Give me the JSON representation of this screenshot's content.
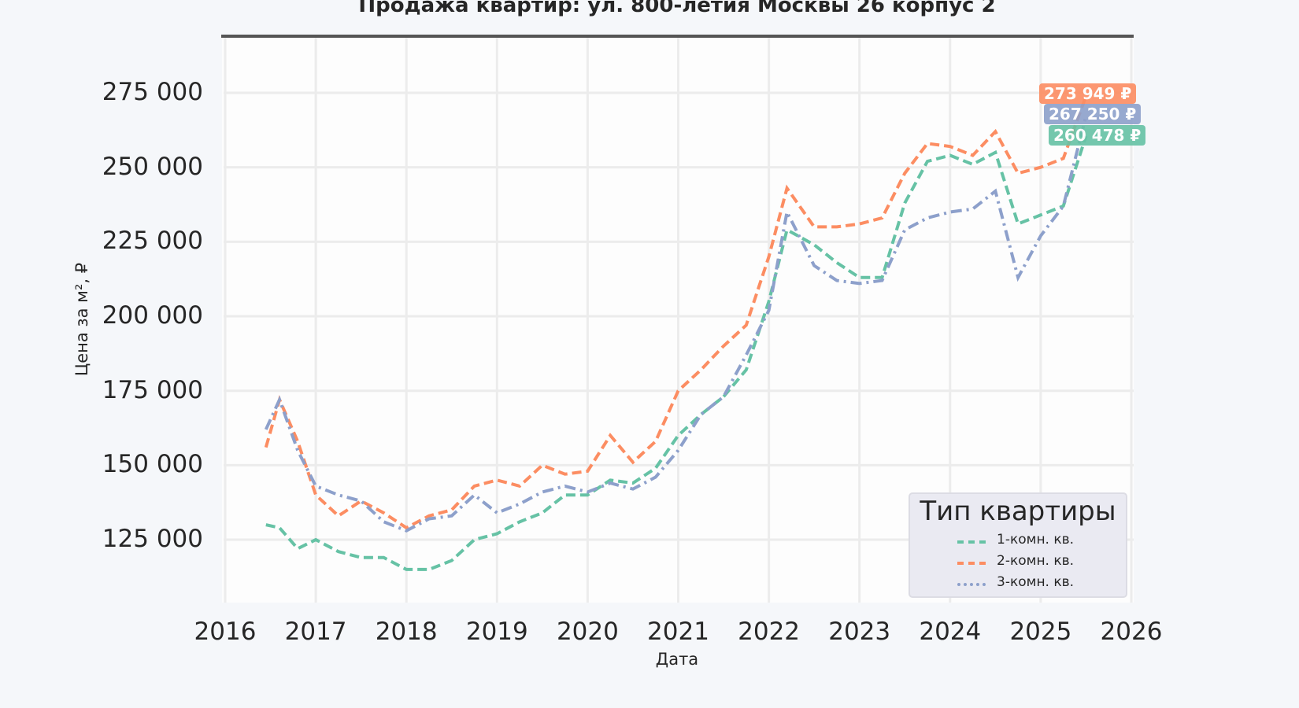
{
  "chart": {
    "title": "Продажа квартир: ул. 800-летия Москвы 26 корпус 2",
    "ylabel": "Цена за м², ₽",
    "xlabel": "Дата",
    "yticks": [
      "275 000",
      "250 000",
      "225 000",
      "200 000",
      "175 000",
      "150 000",
      "125 000"
    ],
    "xticks": [
      "2016",
      "2017",
      "2018",
      "2019",
      "2020",
      "2021",
      "2022",
      "2023",
      "2024",
      "2025",
      "2026"
    ],
    "legend": {
      "title": "Тип квартиры",
      "items": [
        {
          "label": "1-комн. кв.",
          "color": "#66c2a5"
        },
        {
          "label": "2-комн. кв.",
          "color": "#fc8d62"
        },
        {
          "label": "3-комн. кв.",
          "color": "#8da0cb"
        }
      ]
    },
    "badges": [
      {
        "text": "273 949 ₽",
        "color": "#fc8d62"
      },
      {
        "text": "267 250 ₽",
        "color": "#8da0cb"
      },
      {
        "text": "260 478 ₽",
        "color": "#66c2a5"
      }
    ]
  },
  "chart_data": {
    "type": "line",
    "title": "Продажа квартир: ул. 800-летия Москвы 26 корпус 2",
    "xlabel": "Дата",
    "ylabel": "Цена за м², ₽",
    "xlim": [
      2016,
      2026
    ],
    "ylim": [
      106000,
      293000
    ],
    "grid": true,
    "legend_position": "lower right",
    "legend_title": "Тип квартиры",
    "x": [
      2016.45,
      2016.6,
      2016.8,
      2017.0,
      2017.25,
      2017.5,
      2017.75,
      2018.0,
      2018.25,
      2018.5,
      2018.75,
      2019.0,
      2019.25,
      2019.5,
      2019.75,
      2020.0,
      2020.25,
      2020.5,
      2020.75,
      2021.0,
      2021.25,
      2021.5,
      2021.75,
      2022.0,
      2022.2,
      2022.5,
      2022.75,
      2023.0,
      2023.25,
      2023.5,
      2023.75,
      2024.0,
      2024.25,
      2024.5,
      2024.75,
      2025.0,
      2025.25,
      2025.5
    ],
    "series": [
      {
        "name": "1-комн. кв.",
        "color": "#66c2a5",
        "style": "dashed",
        "values": [
          130000,
          129000,
          122000,
          125000,
          121000,
          119000,
          119000,
          115000,
          115000,
          118000,
          125000,
          127000,
          131000,
          134000,
          140000,
          140000,
          145000,
          144000,
          149000,
          160000,
          167000,
          173000,
          182000,
          205000,
          229000,
          224000,
          218000,
          213000,
          213000,
          238000,
          252000,
          254000,
          251000,
          255000,
          231000,
          234000,
          237000,
          260478
        ]
      },
      {
        "name": "2-комн. кв.",
        "color": "#fc8d62",
        "style": "dashed",
        "values": [
          156000,
          172000,
          158000,
          140000,
          133000,
          138000,
          134000,
          129000,
          133000,
          135000,
          143000,
          145000,
          143000,
          150000,
          147000,
          148000,
          160000,
          151000,
          158000,
          175000,
          182000,
          190000,
          197000,
          220000,
          243000,
          230000,
          230000,
          231000,
          233000,
          248000,
          258000,
          257000,
          254000,
          262000,
          248000,
          250000,
          253000,
          273949
        ]
      },
      {
        "name": "3-комн. кв.",
        "color": "#8da0cb",
        "style": "dashdot",
        "values": [
          162000,
          172000,
          155000,
          143000,
          140000,
          138000,
          131000,
          128000,
          132000,
          133000,
          140000,
          134000,
          137000,
          141000,
          143000,
          141000,
          144000,
          142000,
          146000,
          155000,
          167000,
          173000,
          187000,
          202000,
          235000,
          217000,
          212000,
          211000,
          212000,
          229000,
          233000,
          235000,
          236000,
          242000,
          213000,
          227000,
          237000,
          267250
        ]
      }
    ]
  }
}
